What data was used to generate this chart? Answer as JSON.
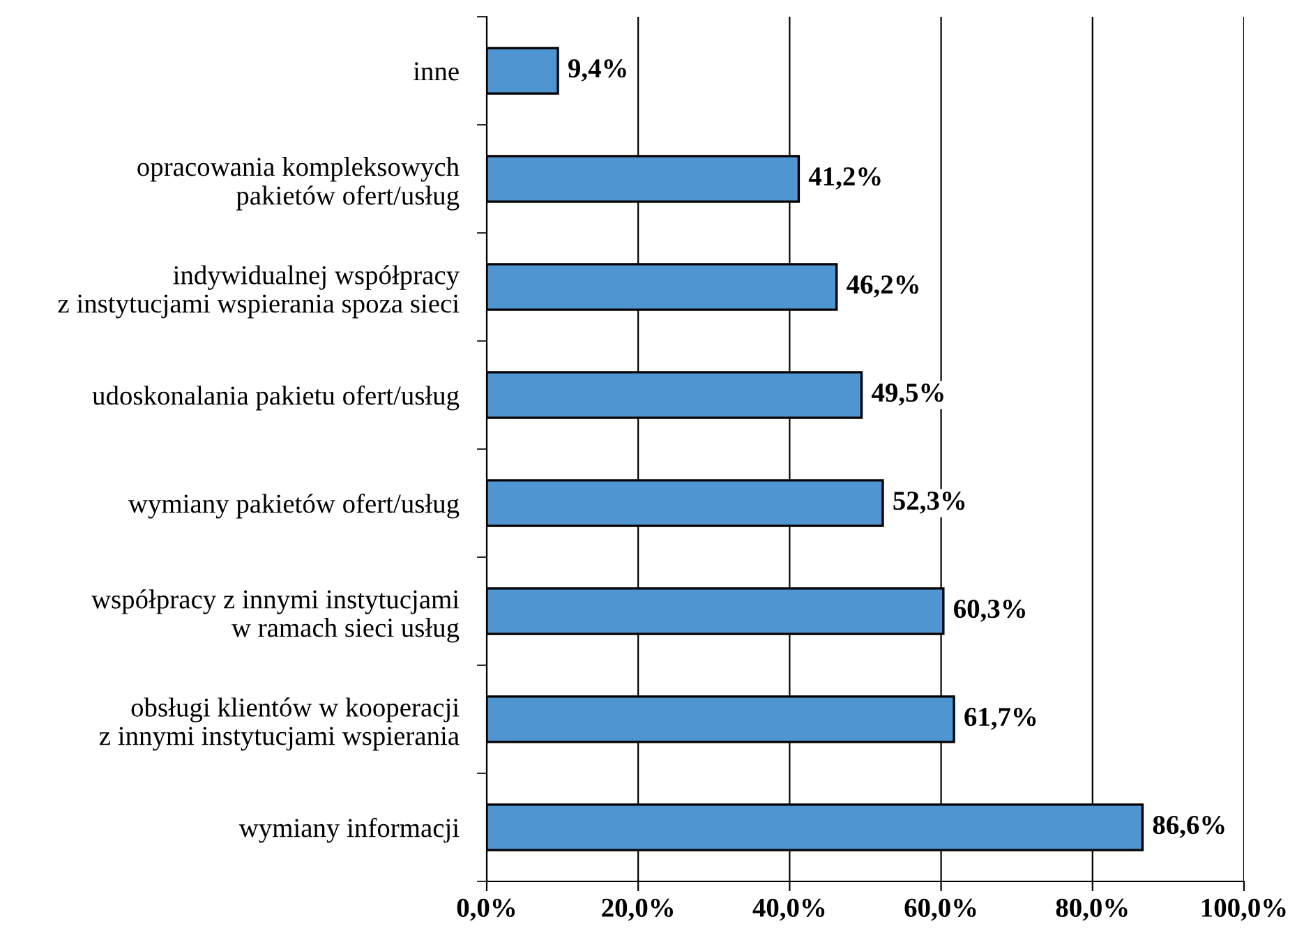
{
  "chart_data": {
    "type": "bar",
    "orientation": "horizontal",
    "categories": [
      "inne",
      "opracowania kompleksowych\npakietów ofert/usług",
      "indywidualnej współpracy\nz instytucjami wspierania spoza sieci",
      "udoskonalania pakietu ofert/usług",
      "wymiany pakietów ofert/usług",
      "współpracy z innymi instytucjami\nw ramach sieci usług",
      "obsługi klientów w kooperacji\nz innymi instytucjami wspierania",
      "wymiany informacji"
    ],
    "values": [
      9.4,
      41.2,
      46.2,
      49.5,
      52.3,
      60.3,
      61.7,
      86.6
    ],
    "value_labels": [
      "9,4%",
      "41,2%",
      "46,2%",
      "49,5%",
      "52,3%",
      "60,3%",
      "61,7%",
      "86,6%"
    ],
    "color": "#4f95d2",
    "xlim": [
      0,
      100
    ],
    "xticks": [
      {
        "value": 0,
        "label": "0,0%"
      },
      {
        "value": 20,
        "label": "20,0%"
      },
      {
        "value": 40,
        "label": "40,0%"
      },
      {
        "value": 60,
        "label": "60,0%"
      },
      {
        "value": 80,
        "label": "80,0%"
      },
      {
        "value": 100,
        "label": "100,0%"
      }
    ],
    "grid": "x",
    "legend": false
  }
}
